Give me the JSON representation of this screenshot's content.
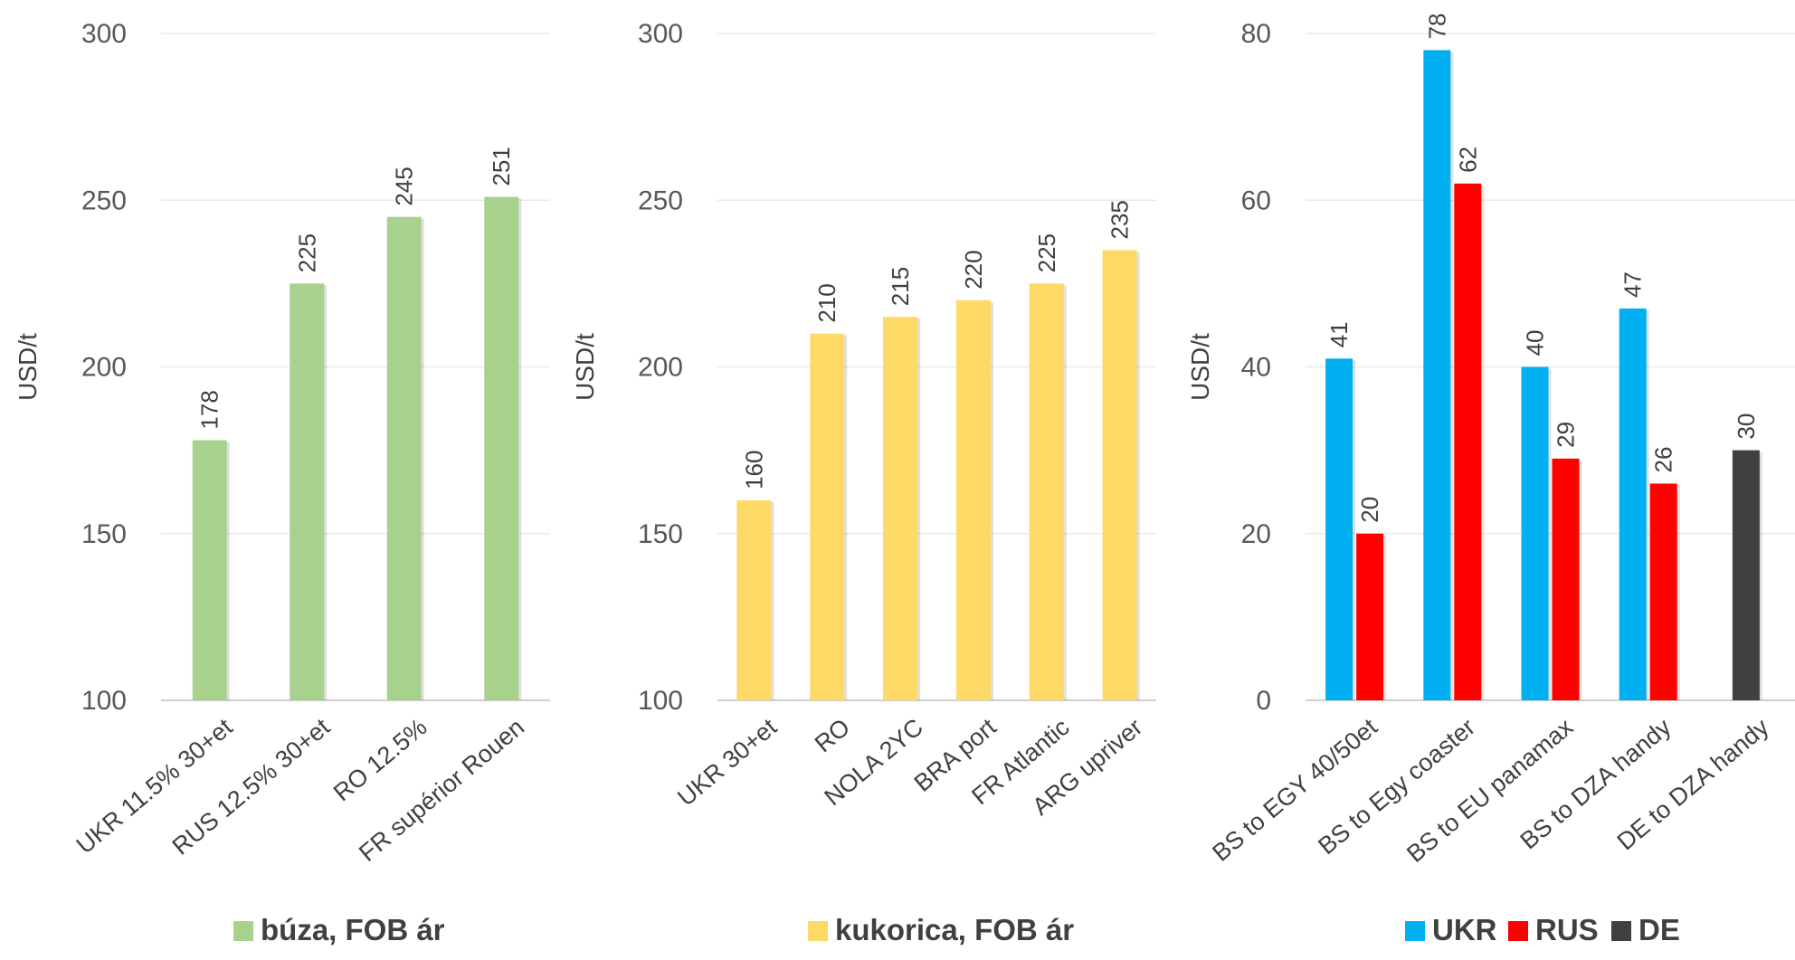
{
  "chart_data": [
    {
      "type": "bar",
      "title": "",
      "xlabel": "",
      "ylabel": "USD/t",
      "ylim": [
        100,
        300
      ],
      "yticks": [
        100,
        150,
        200,
        250,
        300
      ],
      "grid": true,
      "legend_position": "bottom",
      "categories": [
        "UKR 11.5% 30+et",
        "RUS 12.5% 30+et",
        "RO 12.5%",
        "FR supérior Rouen"
      ],
      "series": [
        {
          "name": "búza, FOB ár",
          "color": "#a9d18e",
          "values": [
            178,
            225,
            245,
            251
          ]
        }
      ]
    },
    {
      "type": "bar",
      "title": "",
      "xlabel": "",
      "ylabel": "USD/t",
      "ylim": [
        100,
        300
      ],
      "yticks": [
        100,
        150,
        200,
        250,
        300
      ],
      "grid": true,
      "legend_position": "bottom",
      "categories": [
        "UKR 30+et",
        "RO",
        "NOLA 2YC",
        "BRA port",
        "FR Atlantic",
        "ARG upriver"
      ],
      "series": [
        {
          "name": "kukorica, FOB ár",
          "color": "#ffd966",
          "values": [
            160,
            210,
            215,
            220,
            225,
            235
          ]
        }
      ]
    },
    {
      "type": "bar",
      "title": "",
      "xlabel": "",
      "ylabel": "USD/t",
      "ylim": [
        0,
        80
      ],
      "yticks": [
        0,
        20,
        40,
        60,
        80
      ],
      "grid": true,
      "legend_position": "bottom",
      "categories": [
        "BS to EGY 40/50et",
        "BS to Egy coaster",
        "BS to EU panamax",
        "BS to DZA handy",
        "DE to DZA handy"
      ],
      "series": [
        {
          "name": "UKR",
          "color": "#00b0f0",
          "values": [
            41,
            78,
            40,
            47,
            null
          ]
        },
        {
          "name": "RUS",
          "color": "#ff0000",
          "values": [
            20,
            62,
            29,
            26,
            null
          ]
        },
        {
          "name": "DE",
          "color": "#404040",
          "values": [
            null,
            null,
            null,
            null,
            30
          ]
        }
      ]
    }
  ]
}
